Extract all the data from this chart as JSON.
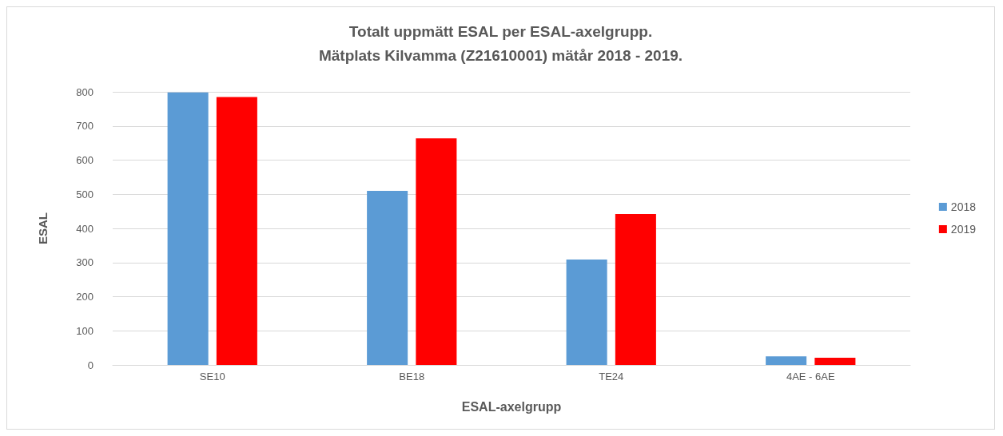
{
  "chart_data": {
    "type": "bar",
    "title": "Totalt uppmätt ESAL per ESAL-axelgrupp.\nMätplats Kilvamma (Z21610001) mätår 2018 - 2019.",
    "xlabel": "ESAL-axelgrupp",
    "ylabel": "ESAL",
    "categories": [
      "SE10",
      "BE18",
      "TE24",
      "4AE - 6AE"
    ],
    "series": [
      {
        "name": "2018",
        "color": "#5b9bd5",
        "values": [
          798,
          510,
          309,
          25
        ]
      },
      {
        "name": "2019",
        "color": "#ff0000",
        "values": [
          785,
          664,
          442,
          21
        ]
      }
    ],
    "ylim": [
      0,
      800
    ],
    "yticks": [
      0,
      100,
      200,
      300,
      400,
      500,
      600,
      700,
      800
    ],
    "grid": "y",
    "legend": "right"
  }
}
